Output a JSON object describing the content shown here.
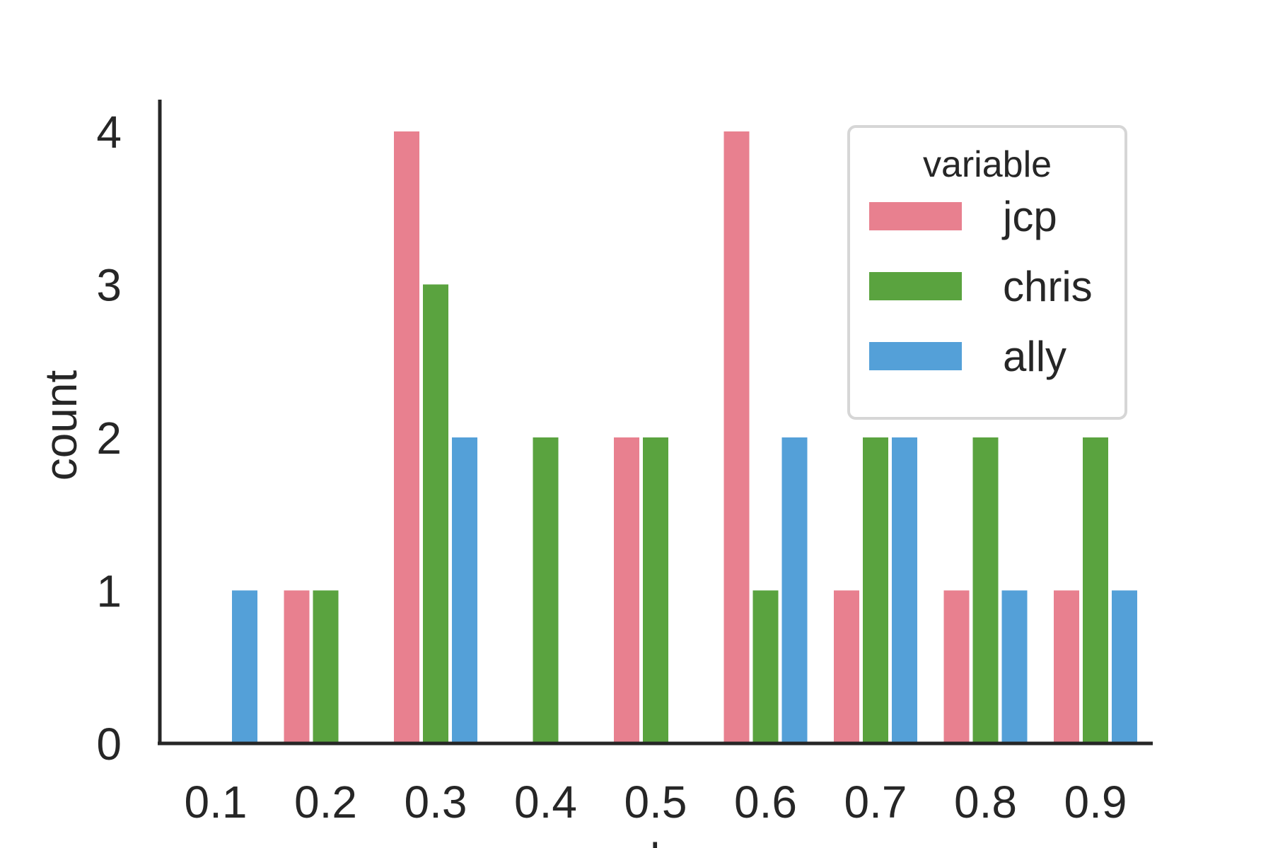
{
  "chart_data": {
    "type": "bar",
    "title": "",
    "xlabel": "value",
    "ylabel": "count",
    "categories": [
      "0.1",
      "0.2",
      "0.3",
      "0.4",
      "0.5",
      "0.6",
      "0.7",
      "0.8",
      "0.9"
    ],
    "series": [
      {
        "name": "jcp",
        "color": "#e8808f",
        "values": [
          0,
          1,
          4,
          0,
          2,
          4,
          1,
          1,
          1
        ]
      },
      {
        "name": "chris",
        "color": "#5aa33f",
        "values": [
          0,
          1,
          3,
          2,
          2,
          1,
          2,
          2,
          2
        ]
      },
      {
        "name": "ally",
        "color": "#54a0d8",
        "values": [
          1,
          0,
          2,
          0,
          0,
          2,
          2,
          1,
          1
        ]
      }
    ],
    "yticks": [
      "0",
      "1",
      "2",
      "3",
      "4"
    ],
    "ylim": [
      0,
      4.25
    ],
    "grid": false,
    "legend": {
      "title": "variable",
      "position": "top-right"
    },
    "axis_color": "#262626"
  }
}
